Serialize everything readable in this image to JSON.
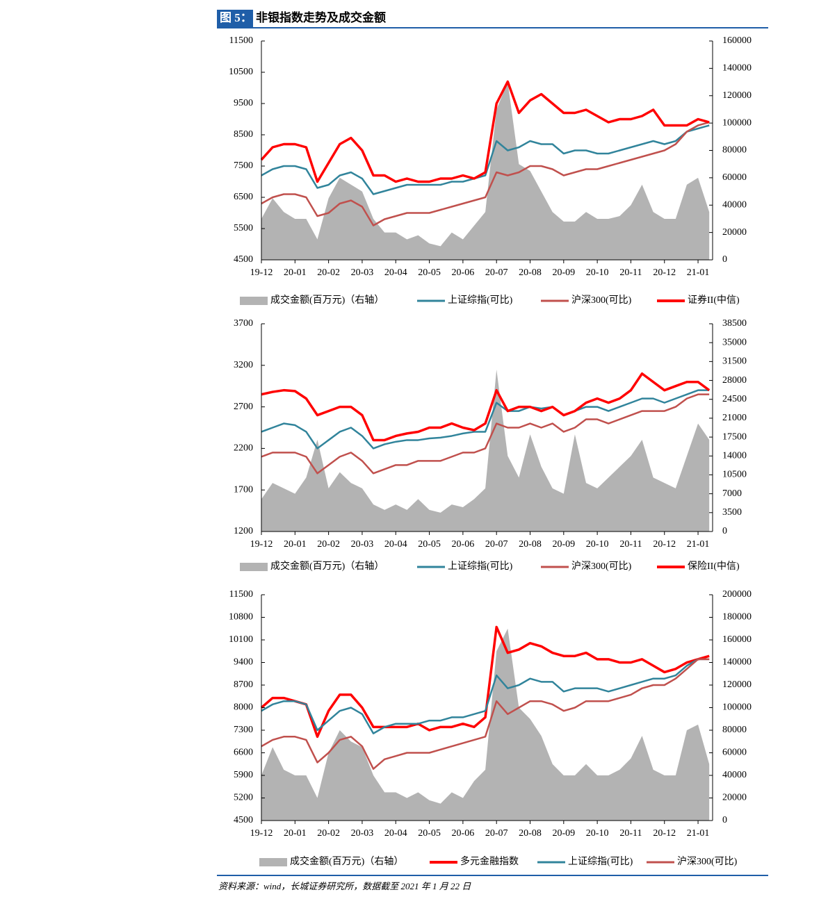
{
  "title_label": "图 5：",
  "title": "非银指数走势及成交金额",
  "source": "资料来源：wind，长城证券研究所，数据截至 2021 年 1 月 22 日",
  "chart_data": [
    {
      "type": "line",
      "categories": [
        "19-12",
        null,
        null,
        "20-01",
        null,
        null,
        "20-02",
        null,
        null,
        "20-03",
        null,
        null,
        "20-04",
        null,
        null,
        "20-05",
        null,
        null,
        "20-06",
        null,
        null,
        "20-07",
        null,
        null,
        "20-08",
        null,
        null,
        "20-09",
        null,
        null,
        "20-10",
        null,
        null,
        "20-11",
        null,
        null,
        "20-12",
        null,
        null,
        "21-01",
        null
      ],
      "ylim": [
        4500,
        11500
      ],
      "yticks": [
        4500,
        5500,
        6500,
        7500,
        8500,
        9500,
        10500,
        11500
      ],
      "y2lim": [
        0,
        160000
      ],
      "y2ticks": [
        0,
        20000,
        40000,
        60000,
        80000,
        100000,
        120000,
        140000,
        160000
      ],
      "series": [
        {
          "name": "成交金额(百万元)（右轴）",
          "color": "#b3b3b3",
          "axis": "y2",
          "values": [
            30000,
            45000,
            35000,
            30000,
            30000,
            15000,
            45000,
            60000,
            55000,
            50000,
            30000,
            20000,
            20000,
            15000,
            18000,
            12000,
            10000,
            20000,
            15000,
            25000,
            35000,
            110000,
            130000,
            70000,
            65000,
            50000,
            35000,
            28000,
            28000,
            35000,
            30000,
            30000,
            32000,
            40000,
            55000,
            35000,
            30000,
            30000,
            55000,
            60000,
            35000
          ]
        },
        {
          "name": "上证综指(可比)",
          "color": "#31849b",
          "values": [
            7200,
            7400,
            7500,
            7500,
            7400,
            6800,
            6900,
            7200,
            7300,
            7100,
            6600,
            6700,
            6800,
            6900,
            6900,
            6900,
            6900,
            7000,
            7000,
            7100,
            7200,
            8300,
            8000,
            8100,
            8300,
            8200,
            8200,
            7900,
            8000,
            8000,
            7900,
            7900,
            8000,
            8100,
            8200,
            8300,
            8200,
            8300,
            8600,
            8700,
            8800
          ]
        },
        {
          "name": "沪深300(可比)",
          "color": "#c0504d",
          "values": [
            6300,
            6500,
            6600,
            6600,
            6500,
            5900,
            6000,
            6300,
            6400,
            6200,
            5600,
            5800,
            5900,
            6000,
            6000,
            6000,
            6100,
            6200,
            6300,
            6400,
            6500,
            7300,
            7200,
            7300,
            7500,
            7500,
            7400,
            7200,
            7300,
            7400,
            7400,
            7500,
            7600,
            7700,
            7800,
            7900,
            8000,
            8200,
            8600,
            8800,
            8900
          ]
        },
        {
          "name": "证券II(中信)",
          "color": "#ff0000",
          "values": [
            7700,
            8100,
            8200,
            8200,
            8100,
            7000,
            7600,
            8200,
            8400,
            8000,
            7200,
            7200,
            7000,
            7100,
            7000,
            7000,
            7100,
            7100,
            7200,
            7100,
            7300,
            9500,
            10200,
            9200,
            9600,
            9800,
            9500,
            9200,
            9200,
            9300,
            9100,
            8900,
            9000,
            9000,
            9100,
            9300,
            8800,
            8800,
            8800,
            9000,
            8900
          ]
        }
      ]
    },
    {
      "type": "line",
      "categories": [
        "19-12",
        null,
        null,
        "20-01",
        null,
        null,
        "20-02",
        null,
        null,
        "20-03",
        null,
        null,
        "20-04",
        null,
        null,
        "20-05",
        null,
        null,
        "20-06",
        null,
        null,
        "20-07",
        null,
        null,
        "20-08",
        null,
        null,
        "20-09",
        null,
        null,
        "20-10",
        null,
        null,
        "20-11",
        null,
        null,
        "20-12",
        null,
        null,
        "21-01",
        null
      ],
      "ylim": [
        1200,
        3700
      ],
      "yticks": [
        1200,
        1700,
        2200,
        2700,
        3200,
        3700
      ],
      "y2lim": [
        0,
        38500
      ],
      "y2ticks": [
        0,
        3500,
        7000,
        10500,
        14000,
        17500,
        21000,
        24500,
        28000,
        31500,
        35000,
        38500
      ],
      "series": [
        {
          "name": "成交金额(百万元)（右轴）",
          "color": "#b3b3b3",
          "axis": "y2",
          "values": [
            6000,
            9000,
            8000,
            7000,
            10000,
            17000,
            8000,
            11000,
            9000,
            8000,
            5000,
            4000,
            5000,
            4000,
            6000,
            4000,
            3500,
            5000,
            4500,
            6000,
            8000,
            30000,
            14000,
            10000,
            18000,
            12000,
            8000,
            7000,
            18000,
            9000,
            8000,
            10000,
            12000,
            14000,
            17000,
            10000,
            9000,
            8000,
            14000,
            20000,
            17000
          ]
        },
        {
          "name": "上证综指(可比)",
          "color": "#31849b",
          "values": [
            2400,
            2450,
            2500,
            2480,
            2400,
            2200,
            2300,
            2400,
            2450,
            2350,
            2200,
            2250,
            2280,
            2300,
            2300,
            2320,
            2330,
            2350,
            2380,
            2400,
            2400,
            2750,
            2650,
            2650,
            2700,
            2680,
            2700,
            2600,
            2650,
            2700,
            2700,
            2650,
            2700,
            2750,
            2800,
            2800,
            2750,
            2800,
            2850,
            2900,
            2900
          ]
        },
        {
          "name": "沪深300(可比)",
          "color": "#c0504d",
          "values": [
            2100,
            2150,
            2150,
            2150,
            2100,
            1900,
            2000,
            2100,
            2150,
            2050,
            1900,
            1950,
            2000,
            2000,
            2050,
            2050,
            2050,
            2100,
            2150,
            2150,
            2200,
            2500,
            2450,
            2450,
            2500,
            2450,
            2500,
            2400,
            2450,
            2550,
            2550,
            2500,
            2550,
            2600,
            2650,
            2650,
            2650,
            2700,
            2800,
            2850,
            2850
          ]
        },
        {
          "name": "保险II(中信)",
          "color": "#ff0000",
          "values": [
            2850,
            2880,
            2900,
            2890,
            2800,
            2600,
            2650,
            2700,
            2700,
            2600,
            2300,
            2300,
            2350,
            2380,
            2400,
            2450,
            2450,
            2500,
            2450,
            2420,
            2500,
            2900,
            2650,
            2700,
            2700,
            2650,
            2700,
            2600,
            2650,
            2750,
            2800,
            2750,
            2800,
            2900,
            3100,
            3000,
            2900,
            2950,
            3000,
            3000,
            2900
          ]
        }
      ]
    },
    {
      "type": "line",
      "categories": [
        "19-12",
        null,
        null,
        "20-01",
        null,
        null,
        "20-02",
        null,
        null,
        "20-03",
        null,
        null,
        "20-04",
        null,
        null,
        "20-05",
        null,
        null,
        "20-06",
        null,
        null,
        "20-07",
        null,
        null,
        "20-08",
        null,
        null,
        "20-09",
        null,
        null,
        "20-10",
        null,
        null,
        "20-11",
        null,
        null,
        "20-12",
        null,
        null,
        "21-01",
        null
      ],
      "ylim": [
        4500,
        11500
      ],
      "yticks": [
        4500,
        5200,
        5900,
        6600,
        7300,
        8000,
        8700,
        9400,
        10100,
        10800,
        11500
      ],
      "y2lim": [
        0,
        200000
      ],
      "y2ticks": [
        0,
        20000,
        40000,
        60000,
        80000,
        100000,
        120000,
        140000,
        160000,
        180000,
        200000
      ],
      "series": [
        {
          "name": "成交金额(百万元)（右轴）",
          "color": "#b3b3b3",
          "axis": "y2",
          "values": [
            40000,
            65000,
            45000,
            40000,
            40000,
            20000,
            60000,
            80000,
            70000,
            65000,
            40000,
            25000,
            25000,
            20000,
            25000,
            18000,
            15000,
            25000,
            20000,
            35000,
            45000,
            150000,
            170000,
            100000,
            90000,
            75000,
            50000,
            40000,
            40000,
            50000,
            40000,
            40000,
            45000,
            55000,
            75000,
            45000,
            40000,
            40000,
            80000,
            85000,
            50000
          ]
        },
        {
          "name": "多元金融指数",
          "color": "#ff0000",
          "values": [
            8000,
            8300,
            8300,
            8200,
            8100,
            7100,
            7900,
            8400,
            8400,
            8000,
            7400,
            7400,
            7400,
            7400,
            7500,
            7300,
            7400,
            7400,
            7500,
            7400,
            7700,
            10500,
            9700,
            9800,
            10000,
            9900,
            9700,
            9600,
            9600,
            9700,
            9500,
            9500,
            9400,
            9400,
            9500,
            9300,
            9100,
            9200,
            9400,
            9500,
            9600
          ]
        },
        {
          "name": "上证综指(可比)",
          "color": "#31849b",
          "values": [
            7900,
            8100,
            8200,
            8200,
            8100,
            7300,
            7600,
            7900,
            8000,
            7800,
            7200,
            7400,
            7500,
            7500,
            7500,
            7600,
            7600,
            7700,
            7700,
            7800,
            7900,
            9000,
            8600,
            8700,
            8900,
            8800,
            8800,
            8500,
            8600,
            8600,
            8600,
            8500,
            8600,
            8700,
            8800,
            8900,
            8900,
            9000,
            9300,
            9500,
            9500
          ]
        },
        {
          "name": "沪深300(可比)",
          "color": "#c0504d",
          "values": [
            6800,
            7000,
            7100,
            7100,
            7000,
            6300,
            6600,
            7000,
            7100,
            6800,
            6100,
            6400,
            6500,
            6600,
            6600,
            6600,
            6700,
            6800,
            6900,
            7000,
            7100,
            8200,
            7800,
            8000,
            8200,
            8200,
            8100,
            7900,
            8000,
            8200,
            8200,
            8200,
            8300,
            8400,
            8600,
            8700,
            8700,
            8900,
            9200,
            9500,
            9500
          ]
        }
      ]
    }
  ]
}
